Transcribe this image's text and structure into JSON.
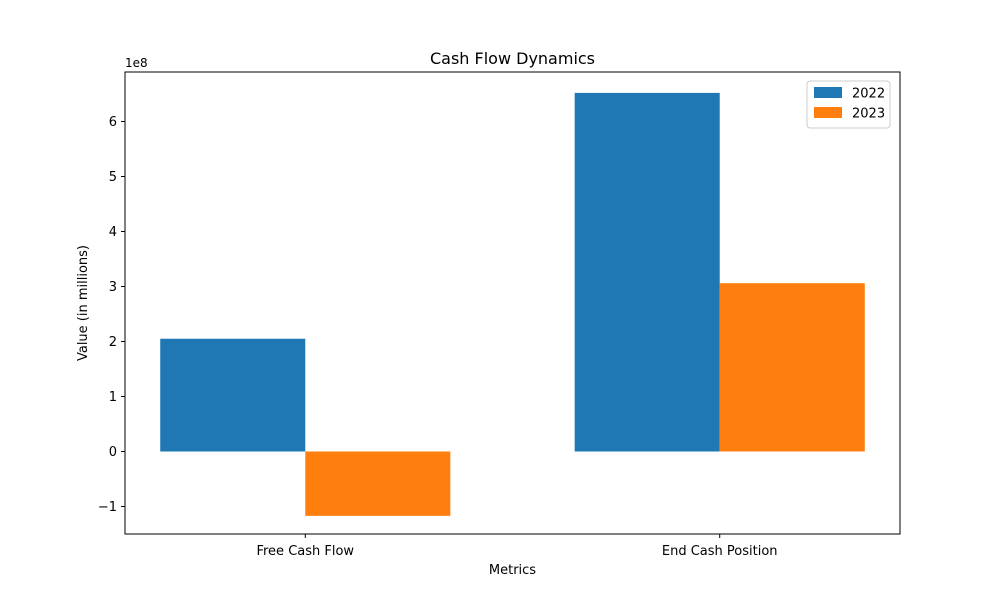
{
  "chart_data": {
    "type": "bar",
    "title": "Cash Flow Dynamics",
    "xlabel": "Metrics",
    "ylabel": "Value (in millions)",
    "y_offset_label": "1e8",
    "categories": [
      "Free Cash Flow",
      "End Cash Position"
    ],
    "series": [
      {
        "name": "2022",
        "color": "#1f77b4",
        "values": [
          205000000,
          652000000
        ]
      },
      {
        "name": "2023",
        "color": "#ff7f0e",
        "values": [
          -117000000,
          306000000
        ]
      }
    ],
    "ylim": [
      -150000000,
      690000000
    ],
    "yticks": [
      {
        "value": -100000000,
        "label": "−1"
      },
      {
        "value": 0,
        "label": "0"
      },
      {
        "value": 100000000,
        "label": "1"
      },
      {
        "value": 200000000,
        "label": "2"
      },
      {
        "value": 300000000,
        "label": "3"
      },
      {
        "value": 400000000,
        "label": "4"
      },
      {
        "value": 500000000,
        "label": "5"
      },
      {
        "value": 600000000,
        "label": "6"
      }
    ],
    "grid": false,
    "legend_position": "top-right"
  }
}
